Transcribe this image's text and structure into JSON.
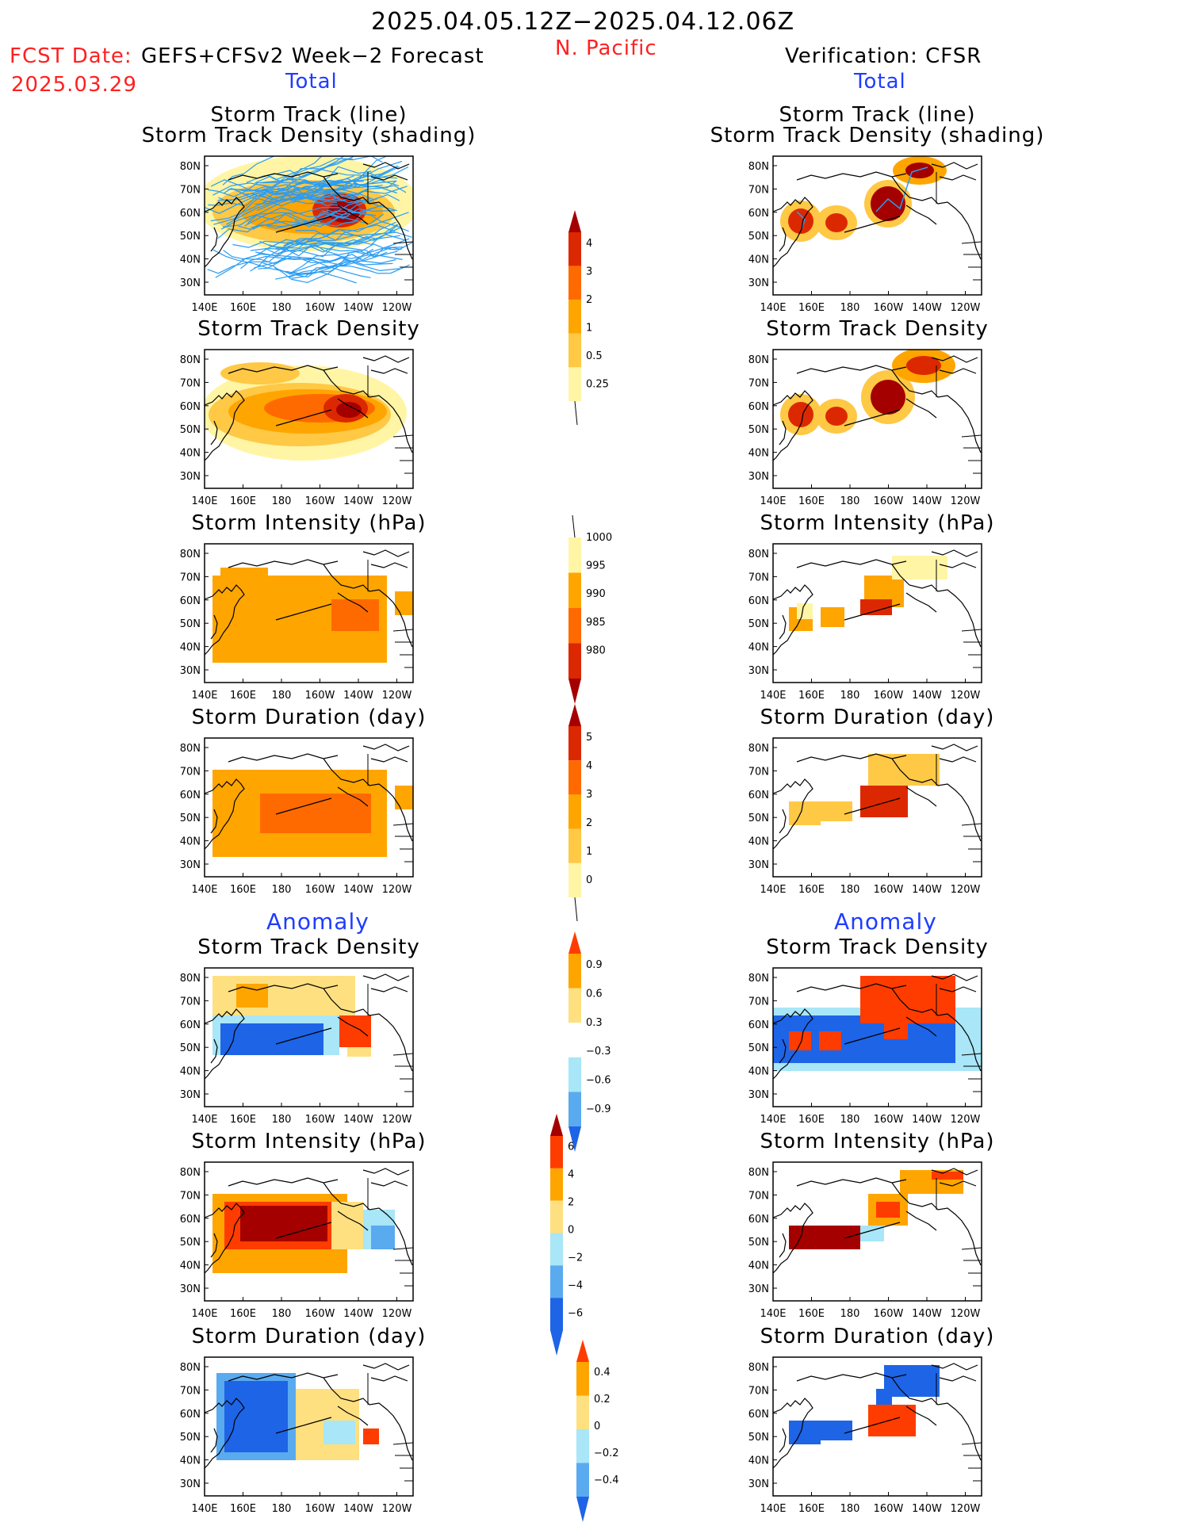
{
  "header": {
    "date_range": "2025.04.05.12Z−2025.04.12.06Z",
    "region": "N. Pacific",
    "fcst_date_label": "FCST Date:",
    "forecast_source": "GEFS+CFSv2 Week−2 Forecast",
    "fcst_date": "2025.03.29",
    "verification": "Verification: CFSR",
    "total_label_left": "Total",
    "total_label_right": "Total",
    "anomaly_label_left": "Anomaly",
    "anomaly_label_right": "Anomaly"
  },
  "axes": {
    "lon_ticks": [
      "140E",
      "160E",
      "180",
      "160W",
      "140W",
      "120W"
    ],
    "lat_ticks": [
      "80N",
      "70N",
      "60N",
      "50N",
      "40N",
      "30N"
    ]
  },
  "panels": {
    "left": [
      {
        "title1": "Storm Track (line)",
        "title2": "Storm Track Density (shading)"
      },
      {
        "title1": "Storm Track Density",
        "title2": ""
      },
      {
        "title1": "Storm Intensity (hPa)",
        "title2": ""
      },
      {
        "title1": "Storm Duration (day)",
        "title2": ""
      },
      {
        "title1": "Storm Track Density",
        "title2": ""
      },
      {
        "title1": "Storm Intensity (hPa)",
        "title2": ""
      },
      {
        "title1": "Storm Duration (day)",
        "title2": ""
      }
    ],
    "right": [
      {
        "title1": "Storm Track (line)",
        "title2": "Storm Track Density (shading)"
      },
      {
        "title1": "Storm Track Density",
        "title2": ""
      },
      {
        "title1": "Storm Intensity (hPa)",
        "title2": ""
      },
      {
        "title1": "Storm Duration (day)",
        "title2": ""
      },
      {
        "title1": "Storm Track Density",
        "title2": ""
      },
      {
        "title1": "Storm Intensity (hPa)",
        "title2": ""
      },
      {
        "title1": "Storm Duration (day)",
        "title2": ""
      }
    ]
  },
  "colorbars": [
    {
      "labels": [
        "4",
        "3",
        "2",
        "1",
        "0.5",
        "0.25"
      ],
      "colors": [
        "#a50000",
        "#dc2800",
        "#ff6a00",
        "#ffa500",
        "#ffc845",
        "#fff5a5"
      ],
      "tail": "down-line"
    },
    {
      "labels": [
        "1000",
        "995",
        "990",
        "985",
        "980"
      ],
      "colors": [
        "#fff5a5",
        "#ffa500",
        "#ff6a00",
        "#dc2800",
        "#a50000"
      ],
      "tail": "up-line"
    },
    {
      "labels": [
        "5",
        "4",
        "3",
        "2",
        "1",
        "0"
      ],
      "colors": [
        "#a50000",
        "#dc2800",
        "#ff6a00",
        "#ffa500",
        "#ffc845",
        "#fff5a5"
      ],
      "tail": "down-line"
    },
    {
      "labels": [
        "0.9",
        "0.6",
        "0.3",
        "−0.3",
        "−0.6",
        "−0.9"
      ],
      "colors": [
        "#ff3c00",
        "#ffa500",
        "#ffe080",
        "#ffffff",
        "#a8e6f8",
        "#5aaaf0",
        "#1e64e6"
      ],
      "tail": "both"
    },
    {
      "labels": [
        "6",
        "4",
        "2",
        "0",
        "−2",
        "−4",
        "−6"
      ],
      "colors": [
        "#a50000",
        "#ff3c00",
        "#ffa500",
        "#ffe080",
        "#a8e6f8",
        "#5aaaf0",
        "#1e64e6",
        "#1e64e6"
      ],
      "tail": "both"
    },
    {
      "labels": [
        "0.4",
        "0.2",
        "0",
        "−0.2",
        "−0.4"
      ],
      "colors": [
        "#ff3c00",
        "#ffa500",
        "#ffe080",
        "#a8e6f8",
        "#5aaaf0",
        "#1e64e6"
      ],
      "tail": "both"
    }
  ],
  "colors": {
    "forecast_red": "#ff2020",
    "label_blue": "#1f3cff",
    "track_line": "#2a9df4"
  }
}
